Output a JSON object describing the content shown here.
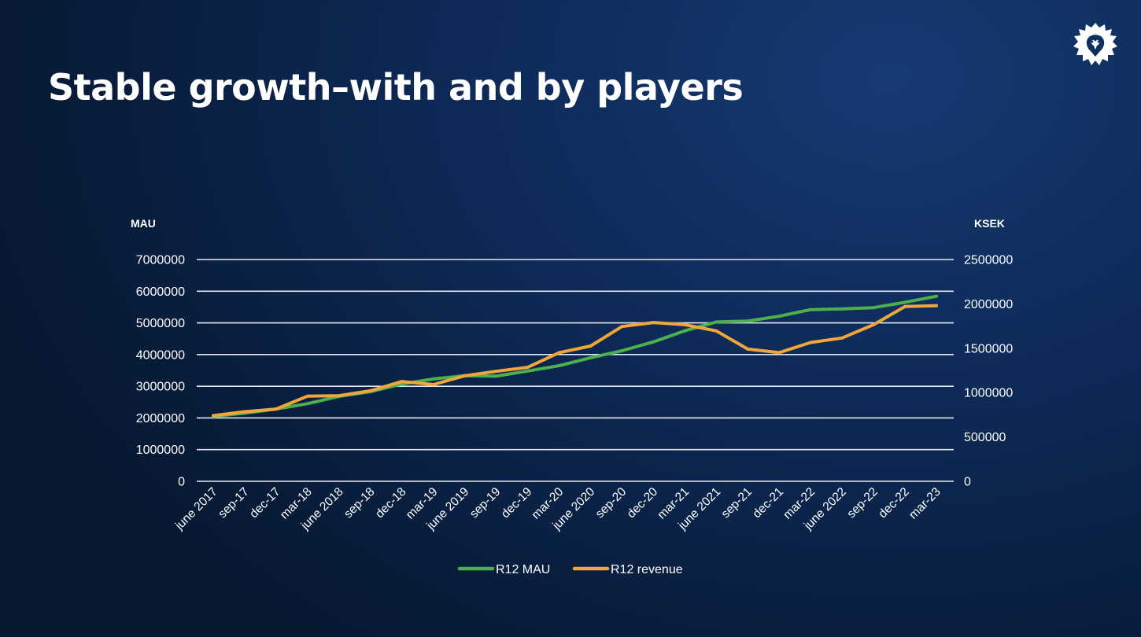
{
  "slide": {
    "title": "Stable growth–with and by players"
  },
  "logo": {
    "icon": "paradox-logo-icon"
  },
  "colors": {
    "mau": "#4cb04f",
    "revenue": "#f0a63a",
    "grid": "#e6e9ef",
    "text": "#ffffff"
  },
  "chart_data": {
    "type": "line",
    "y_left_label": "MAU",
    "y_right_label": "KSEK",
    "ylim_left": [
      0,
      7000000
    ],
    "ylim_right": [
      0,
      2500000
    ],
    "yticks_left": [
      "0",
      "1000000",
      "2000000",
      "3000000",
      "4000000",
      "5000000",
      "6000000",
      "7000000"
    ],
    "yticks_right": [
      "0",
      "500000",
      "1000000",
      "1500000",
      "2000000",
      "2500000"
    ],
    "grid": true,
    "legend_position": "bottom",
    "categories": [
      "june 2017",
      "sep-17",
      "dec-17",
      "mar-18",
      "june 2018",
      "sep-18",
      "dec-18",
      "mar-19",
      "june 2019",
      "sep-19",
      "dec-19",
      "mar-20",
      "june 2020",
      "sep-20",
      "dec-20",
      "mar-21",
      "june 2021",
      "sep-21",
      "dec-21",
      "mar-22",
      "june 2022",
      "sep-22",
      "dec-22",
      "mar-23"
    ],
    "series": [
      {
        "name": "R12 MAU",
        "axis": "left",
        "color": "#4cb04f",
        "values": [
          2050000,
          2150000,
          2280000,
          2450000,
          2680000,
          2830000,
          3070000,
          3230000,
          3330000,
          3320000,
          3480000,
          3650000,
          3900000,
          4120000,
          4400000,
          4750000,
          5030000,
          5060000,
          5210000,
          5420000,
          5440000,
          5480000,
          5650000,
          5840000
        ]
      },
      {
        "name": "R12 revenue",
        "axis": "right",
        "color": "#f0a63a",
        "values": [
          740000,
          785000,
          815000,
          960000,
          965000,
          1020000,
          1125000,
          1090000,
          1190000,
          1240000,
          1285000,
          1450000,
          1525000,
          1745000,
          1790000,
          1765000,
          1695000,
          1490000,
          1450000,
          1565000,
          1615000,
          1765000,
          1970000,
          1980000
        ]
      }
    ]
  }
}
